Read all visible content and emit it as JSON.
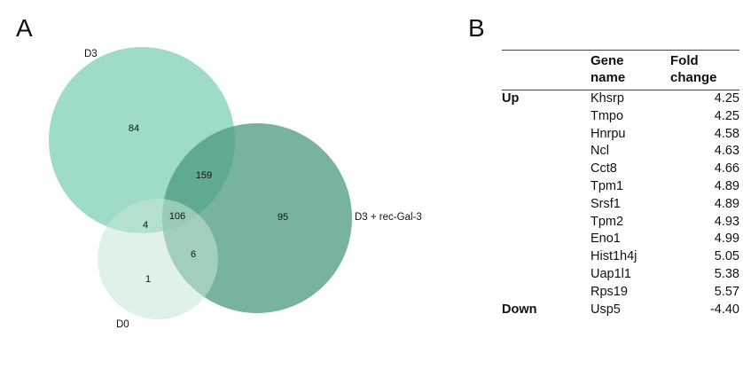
{
  "panels": {
    "a": "A",
    "b": "B"
  },
  "venn": {
    "sets": [
      {
        "label": "D3",
        "color": "#7dcfb6"
      },
      {
        "label": "D3 + rec-Gal-3",
        "color": "#4a9a7e"
      },
      {
        "label": "D0",
        "color": "#c6e5d4"
      }
    ],
    "regions": {
      "d3_only": "84",
      "d3_rec": "159",
      "rec_only": "95",
      "all_three": "106",
      "d3_d0": "4",
      "rec_d0": "6",
      "d0_only": "1"
    }
  },
  "table": {
    "headers": {
      "gene": "Gene\nname",
      "fold": "Fold\nchange"
    },
    "rows": [
      {
        "group": "Up",
        "gene": "Khsrp",
        "fold": "4.25"
      },
      {
        "group": "",
        "gene": "Tmpo",
        "fold": "4.25"
      },
      {
        "group": "",
        "gene": "Hnrpu",
        "fold": "4.58"
      },
      {
        "group": "",
        "gene": "Ncl",
        "fold": "4.63"
      },
      {
        "group": "",
        "gene": "Cct8",
        "fold": "4.66"
      },
      {
        "group": "",
        "gene": "Tpm1",
        "fold": "4.89"
      },
      {
        "group": "",
        "gene": "Srsf1",
        "fold": "4.89"
      },
      {
        "group": "",
        "gene": "Tpm2",
        "fold": "4.93"
      },
      {
        "group": "",
        "gene": "Eno1",
        "fold": "4.99"
      },
      {
        "group": "",
        "gene": "Hist1h4j",
        "fold": "5.05"
      },
      {
        "group": "",
        "gene": "Uap1l1",
        "fold": "5.38"
      },
      {
        "group": "",
        "gene": "Rps19",
        "fold": "5.57"
      },
      {
        "group": "Down",
        "gene": "Usp5",
        "fold": "-4.40"
      }
    ]
  }
}
